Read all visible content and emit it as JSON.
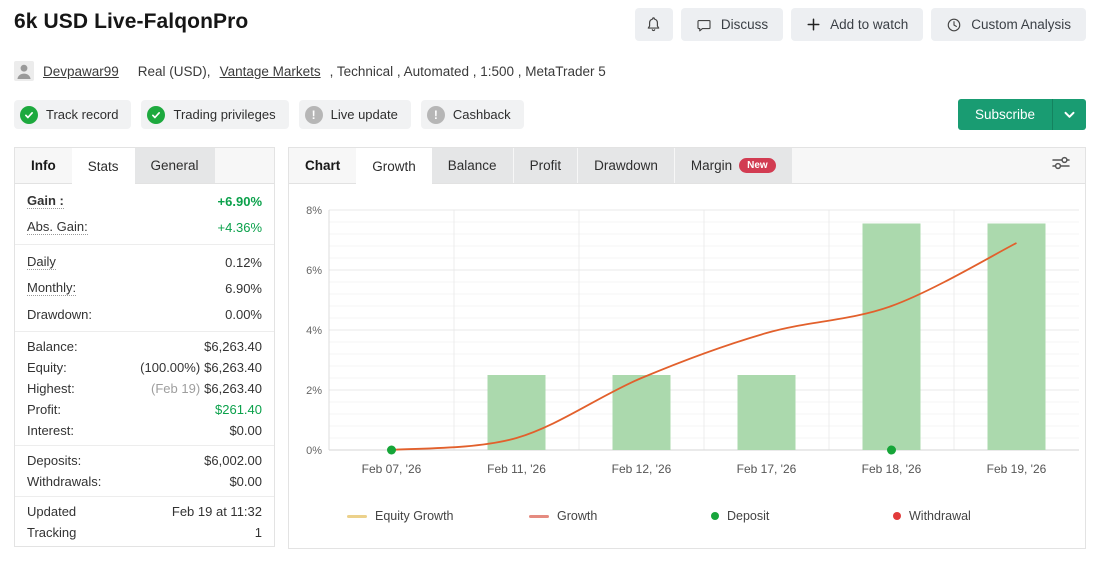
{
  "header": {
    "title": "6k USD Live-FalqonPro",
    "actions": {
      "discuss": "Discuss",
      "add_to_watch": "Add to watch",
      "custom_analysis": "Custom Analysis"
    },
    "user": {
      "name": "Devpawar99",
      "segment1": "Real (USD),",
      "broker": "Vantage Markets",
      "segment2": ", Technical , Automated , 1:500 , MetaTrader 5"
    }
  },
  "badges": [
    {
      "label": "Track record",
      "status": "verified"
    },
    {
      "label": "Trading privileges",
      "status": "verified"
    },
    {
      "label": "Live update",
      "status": "warning"
    },
    {
      "label": "Cashback",
      "status": "warning"
    }
  ],
  "subscribe": {
    "label": "Subscribe"
  },
  "colors": {
    "subscribe_green": "#199c72",
    "verified_green": "#1da93e",
    "warning_gray": "#b6b6b6",
    "value_green": "#0ba14b",
    "growth_line": "#e2602c",
    "bar_green": "#abd9ad",
    "new_badge_red": "#d23c52"
  },
  "stats_panel": {
    "tabs": [
      {
        "label": "Info",
        "style": "plain"
      },
      {
        "label": "Stats",
        "style": "active"
      },
      {
        "label": "General",
        "style": "default"
      }
    ],
    "groups": [
      {
        "rows": [
          {
            "label": "Gain :",
            "value": "+6.90%",
            "label_bold": true,
            "value_bold": true,
            "value_color": "green",
            "dotted": true
          },
          {
            "label": "Abs. Gain:",
            "value": "+4.36%",
            "value_color": "green",
            "dotted": true
          }
        ]
      },
      {
        "rows": [
          {
            "label": "Daily",
            "value": "0.12%",
            "dotted": true
          },
          {
            "label": "Monthly:",
            "value": "6.90%",
            "dotted": true
          },
          {
            "label": "Drawdown:",
            "value": "0.00%"
          }
        ]
      },
      {
        "tight": true,
        "rows": [
          {
            "label": "Balance:",
            "value": "$6,263.40"
          },
          {
            "label": "Equity:",
            "pre": "(100.00%)",
            "pre_color": "dark",
            "value": "$6,263.40"
          },
          {
            "label": "Highest:",
            "pre": "(Feb 19)",
            "pre_color": "gray",
            "value": "$6,263.40"
          },
          {
            "label": "Profit:",
            "value": "$261.40",
            "value_color": "green"
          },
          {
            "label": "Interest:",
            "value": "$0.00"
          }
        ]
      },
      {
        "tight": true,
        "rows": [
          {
            "label": "Deposits:",
            "value": "$6,002.00"
          },
          {
            "label": "Withdrawals:",
            "value": "$0.00"
          }
        ]
      },
      {
        "tight": true,
        "rows": [
          {
            "label": "Updated",
            "value": "Feb 19 at 11:32"
          },
          {
            "label": "Tracking",
            "value": "1"
          }
        ]
      }
    ]
  },
  "chart_tabs": [
    {
      "label": "Chart",
      "style": "plain"
    },
    {
      "label": "Growth",
      "style": "active"
    },
    {
      "label": "Balance",
      "style": "default"
    },
    {
      "label": "Profit",
      "style": "default"
    },
    {
      "label": "Drawdown",
      "style": "default"
    },
    {
      "label": "Margin",
      "style": "default",
      "badge": "New"
    }
  ],
  "chart_data": {
    "type": "line+bar",
    "categories": [
      "Feb 07, '26",
      "Feb 11, '26",
      "Feb 12, '26",
      "Feb 17, '26",
      "Feb 18, '26",
      "Feb 19, '26"
    ],
    "series": [
      {
        "name": "Growth",
        "type": "line",
        "color": "#e2602c",
        "values": [
          0,
          0.4,
          2.4,
          3.9,
          4.8,
          6.9
        ]
      },
      {
        "name": "Daily bars",
        "type": "bar",
        "color": "#abd9ad",
        "values": [
          null,
          2.5,
          2.5,
          2.5,
          7.55,
          7.55
        ]
      }
    ],
    "markers": [
      {
        "type": "deposit",
        "category_index": 0,
        "value": 0,
        "color": "#16a538"
      },
      {
        "type": "deposit",
        "category_index": 4,
        "value": 0,
        "color": "#16a538"
      }
    ],
    "ylim": [
      0,
      8
    ],
    "ytick_step": 2,
    "ytick_suffix": "%",
    "grid": true,
    "legend_position": "bottom",
    "legend": [
      {
        "label": "Equity Growth",
        "swatch": "line",
        "color": "#ecd18b"
      },
      {
        "label": "Growth",
        "swatch": "line",
        "color": "#e58b80"
      },
      {
        "label": "Deposit",
        "swatch": "dot",
        "color": "#18a53c"
      },
      {
        "label": "Withdrawal",
        "swatch": "dot",
        "color": "#e23b3b"
      }
    ]
  }
}
